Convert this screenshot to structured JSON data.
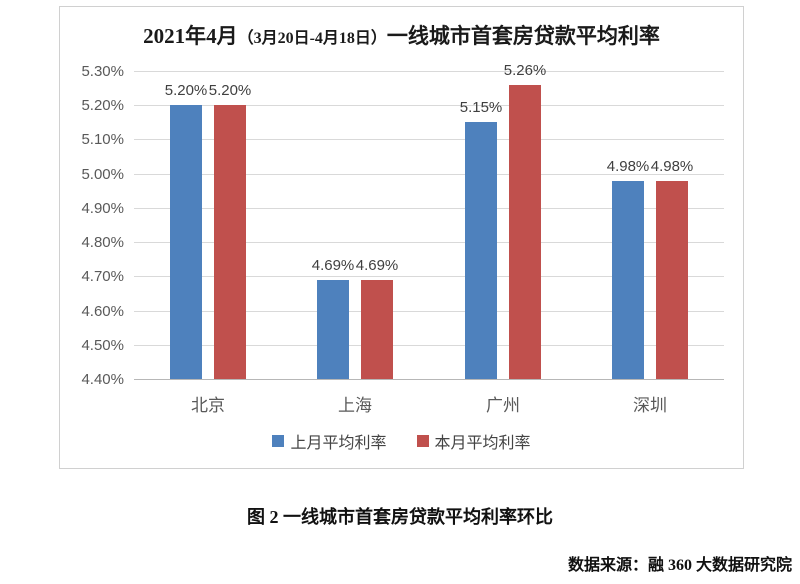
{
  "chart": {
    "title": {
      "prefix": "2021年4月",
      "paren": "（3月20日-4月18日）",
      "suffix": "一线城市首套房贷款平均利率"
    }
  },
  "chart_data": {
    "type": "bar",
    "title": "2021年4月（3月20日-4月18日）一线城市首套房贷款平均利率",
    "categories": [
      "北京",
      "上海",
      "广州",
      "深圳"
    ],
    "series": [
      {
        "name": "上月平均利率",
        "color": "#4E81BD",
        "values": [
          5.2,
          4.69,
          5.15,
          4.98
        ],
        "labels": [
          "5.20%",
          "4.69%",
          "5.15%",
          "4.98%"
        ]
      },
      {
        "name": "本月平均利率",
        "color": "#C0504D",
        "values": [
          5.2,
          4.69,
          5.26,
          4.98
        ],
        "labels": [
          "5.20%",
          "4.69%",
          "5.26%",
          "4.98%"
        ]
      }
    ],
    "ylim": [
      4.4,
      5.3
    ],
    "ytick_step": 0.1,
    "ytick_labels": [
      "4.40%",
      "4.50%",
      "4.60%",
      "4.70%",
      "4.80%",
      "4.90%",
      "5.00%",
      "5.10%",
      "5.20%",
      "5.30%"
    ],
    "grid": true,
    "legend_position": "bottom",
    "colors": {
      "gridline": "#d9d9d9",
      "axis_line": "#b7b7b7",
      "tick_text": "#595959",
      "label_text": "#404040"
    }
  },
  "caption": "图 2  一线城市首套房贷款平均利率环比",
  "source": "数据来源：融 360 大数据研究院"
}
